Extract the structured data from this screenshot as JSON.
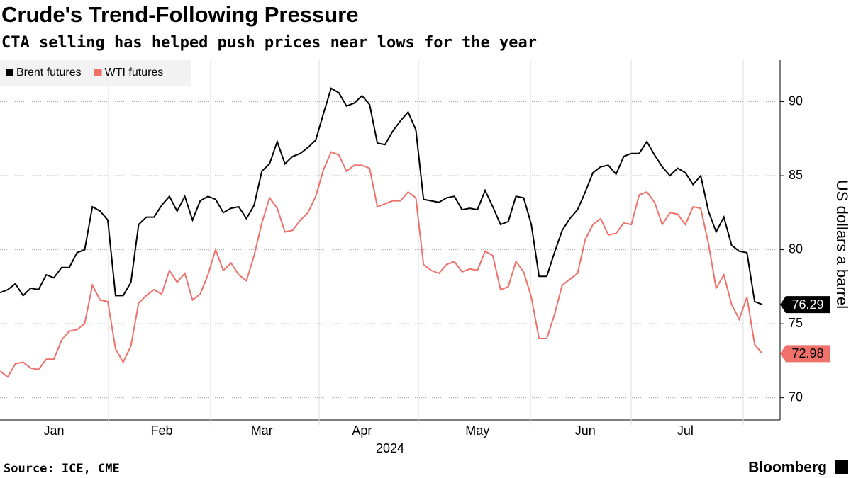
{
  "chart_data": {
    "type": "line",
    "title": "Crude's Trend-Following Pressure",
    "subtitle": "CTA selling has helped push prices near lows for the year",
    "y_label": "US dollars a barrel",
    "x_label": "2024",
    "source": "Source: ICE, CME",
    "brand": "Bloomberg",
    "legend": "top-left",
    "grid": true,
    "categories": [
      null,
      null,
      null,
      null,
      null,
      null,
      null,
      "Jan",
      null,
      null,
      null,
      null,
      null,
      null,
      null,
      null,
      null,
      null,
      null,
      null,
      null,
      "Feb",
      null,
      null,
      null,
      null,
      null,
      null,
      null,
      null,
      null,
      null,
      null,
      null,
      "Mar",
      null,
      null,
      null,
      null,
      null,
      null,
      null,
      null,
      null,
      null,
      null,
      null,
      "Apr",
      null,
      null,
      null,
      null,
      null,
      null,
      null,
      null,
      null,
      null,
      null,
      null,
      null,
      null,
      "May",
      null,
      null,
      null,
      null,
      null,
      null,
      null,
      null,
      null,
      null,
      null,
      null,
      null,
      "Jun",
      null,
      null,
      null,
      null,
      null,
      null,
      null,
      null,
      null,
      null,
      null,
      null,
      "Jul",
      null,
      null,
      null,
      null,
      null,
      null,
      null,
      null,
      null,
      null
    ],
    "series": [
      {
        "name": "Brent futures",
        "color": "#000000",
        "values": [
          77.1,
          77.3,
          77.7,
          76.9,
          77.4,
          77.3,
          78.3,
          78.1,
          78.8,
          78.8,
          79.8,
          80.0,
          82.9,
          82.6,
          82.0,
          76.9,
          76.9,
          77.8,
          81.7,
          82.2,
          82.2,
          83.0,
          83.6,
          82.6,
          83.6,
          82.0,
          83.3,
          83.6,
          83.4,
          82.5,
          82.8,
          82.9,
          82.1,
          83.0,
          85.3,
          85.8,
          87.3,
          85.8,
          86.3,
          86.5,
          86.9,
          87.4,
          89.2,
          90.9,
          90.6,
          89.7,
          89.9,
          90.4,
          89.8,
          87.2,
          87.1,
          88.0,
          88.7,
          89.3,
          88.1,
          83.4,
          83.3,
          83.2,
          83.5,
          83.6,
          82.7,
          82.8,
          82.7,
          84.0,
          82.9,
          81.7,
          81.9,
          83.6,
          83.5,
          81.7,
          78.2,
          78.2,
          79.8,
          81.3,
          82.1,
          82.7,
          83.9,
          85.2,
          85.6,
          85.7,
          85.1,
          86.3,
          86.5,
          86.5,
          87.3,
          86.4,
          85.6,
          85.0,
          85.5,
          85.2,
          84.4,
          85.0,
          82.6,
          81.2,
          82.2,
          80.3,
          79.9,
          79.8,
          76.5,
          76.29
        ]
      },
      {
        "name": "WTI futures",
        "color": "#f0706a",
        "values": [
          71.8,
          71.4,
          72.3,
          72.4,
          72.0,
          71.9,
          72.6,
          72.6,
          73.9,
          74.5,
          74.6,
          75.0,
          77.6,
          76.6,
          76.5,
          73.3,
          72.4,
          73.5,
          76.4,
          76.9,
          77.3,
          77.0,
          78.6,
          77.8,
          78.4,
          76.6,
          77.0,
          78.3,
          80.0,
          78.6,
          79.1,
          78.3,
          77.9,
          79.6,
          81.8,
          83.5,
          82.8,
          81.2,
          81.3,
          82.0,
          82.5,
          83.6,
          85.4,
          86.6,
          86.4,
          85.3,
          85.7,
          85.7,
          85.5,
          82.9,
          83.1,
          83.3,
          83.3,
          83.9,
          83.5,
          79.0,
          78.6,
          78.4,
          79.0,
          79.2,
          78.5,
          78.7,
          78.6,
          79.9,
          79.6,
          77.3,
          77.5,
          79.2,
          78.5,
          76.8,
          74.0,
          74.0,
          75.6,
          77.6,
          78.0,
          78.4,
          80.7,
          81.7,
          82.1,
          81.0,
          81.1,
          81.8,
          81.7,
          83.7,
          83.9,
          83.2,
          81.7,
          82.5,
          82.4,
          81.7,
          82.9,
          82.8,
          80.4,
          77.4,
          78.3,
          76.3,
          75.3,
          76.8,
          73.6,
          72.98
        ]
      }
    ],
    "ylim": [
      68.5,
      92.8
    ],
    "yticks": [
      70,
      75,
      80,
      85,
      90
    ]
  }
}
